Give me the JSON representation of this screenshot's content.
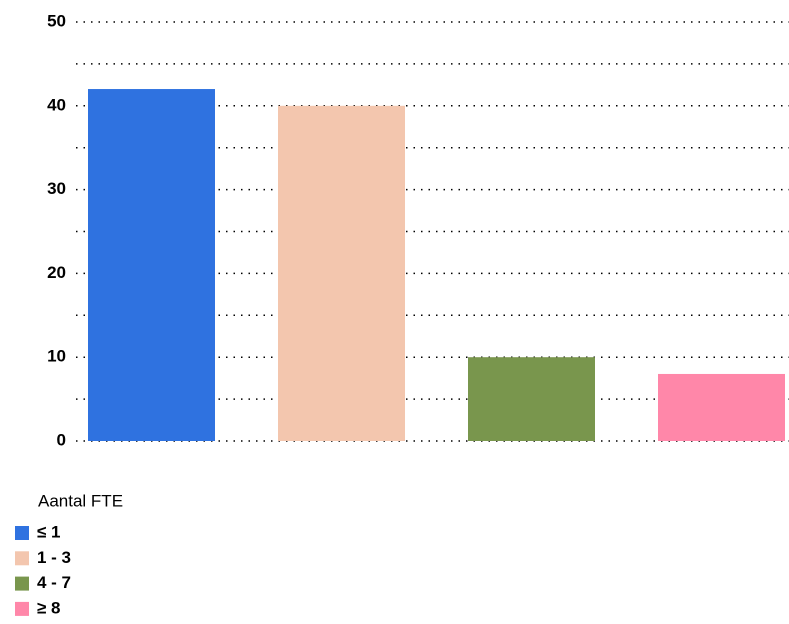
{
  "chart_data": {
    "type": "bar",
    "categories": [
      "≤ 1",
      "1 - 3",
      "4 - 7",
      "≥ 8"
    ],
    "values": [
      42,
      40,
      10,
      8
    ],
    "colors": [
      "#2f72e0",
      "#f3c6ae",
      "#79964d",
      "#ff87a9"
    ],
    "ylim": [
      0,
      50
    ],
    "yticks": [
      0,
      10,
      20,
      30,
      40,
      50
    ],
    "minor_yticks": [
      5,
      15,
      25,
      35,
      45
    ],
    "grid": true,
    "legend_title": "Aantal FTE",
    "legend_position": "bottom-left"
  }
}
